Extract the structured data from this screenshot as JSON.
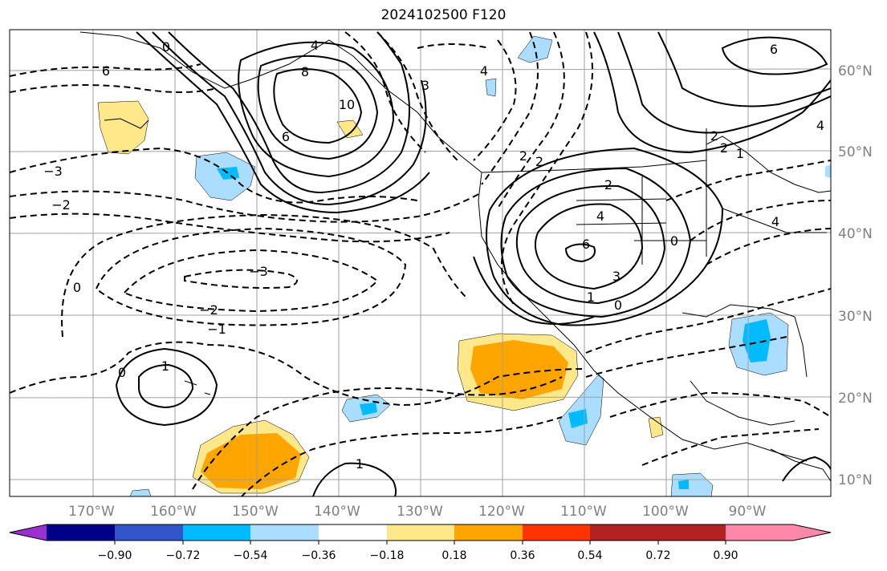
{
  "title": "2024102500 F120",
  "lon_labels": [
    "170°W",
    "160°W",
    "150°W",
    "140°W",
    "130°W",
    "120°W",
    "110°W",
    "100°W",
    "90°W"
  ],
  "lat_labels": [
    "60°N",
    "50°N",
    "40°N",
    "30°N",
    "20°N",
    "10°N"
  ],
  "colorbar": {
    "colors": [
      "#9a30d0",
      "#000088",
      "#3355cc",
      "#00bbff",
      "#aaddff",
      "#ffffff",
      "#ffe88a",
      "#ffa500",
      "#ff3300",
      "#b22222",
      "#ff88aa"
    ],
    "labels": [
      "−0.90",
      "−0.72",
      "−0.54",
      "−0.36",
      "−0.18",
      "0.18",
      "0.36",
      "0.54",
      "0.72",
      "0.90"
    ]
  },
  "contour_labels": [
    "6",
    "4",
    "8",
    "10",
    "6",
    "3",
    "2",
    "0",
    "−3",
    "−2",
    "−3",
    "−2",
    "−1",
    "0",
    "1",
    "0",
    "1",
    "4",
    "2",
    "2",
    "4",
    "6",
    "3",
    "1",
    "0",
    "2",
    "2",
    "1",
    "0",
    "6",
    "4",
    "4"
  ]
}
